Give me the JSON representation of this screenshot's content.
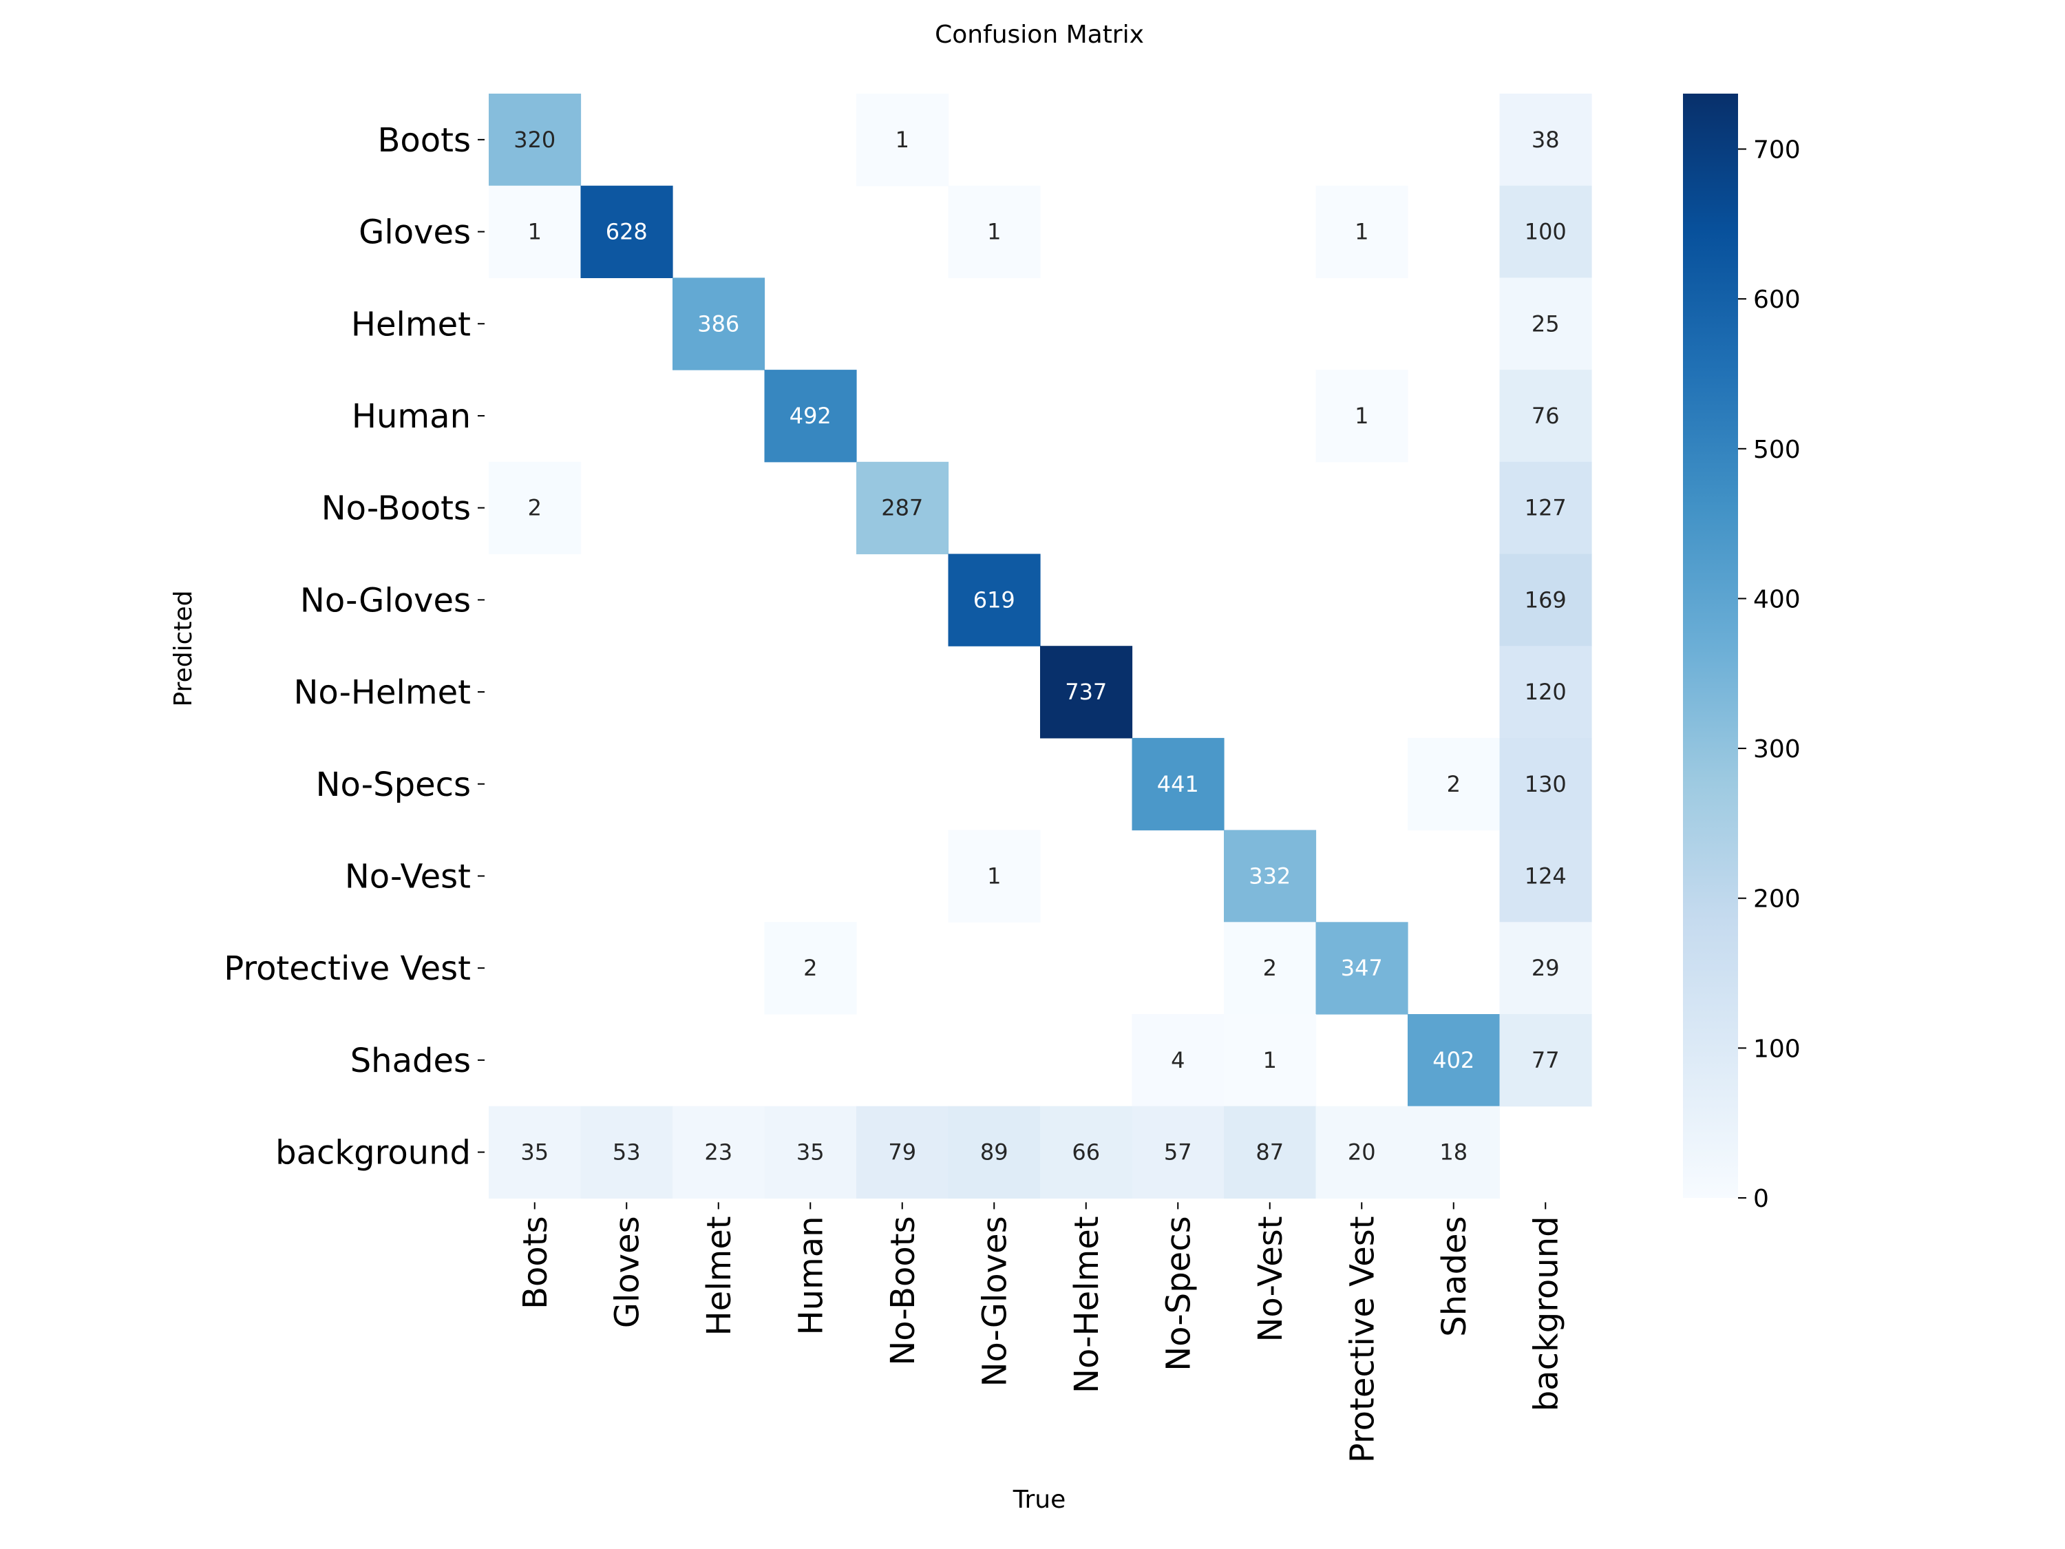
{
  "chart_data": {
    "type": "heatmap",
    "title": "Confusion Matrix",
    "xlabel": "True",
    "ylabel": "Predicted",
    "x_categories": [
      "Boots",
      "Gloves",
      "Helmet",
      "Human",
      "No-Boots",
      "No-Gloves",
      "No-Helmet",
      "No-Specs",
      "No-Vest",
      "Protective Vest",
      "Shades",
      "background"
    ],
    "y_categories": [
      "Boots",
      "Gloves",
      "Helmet",
      "Human",
      "No-Boots",
      "No-Gloves",
      "No-Helmet",
      "No-Specs",
      "No-Vest",
      "Protective Vest",
      "Shades",
      "background"
    ],
    "values": [
      [
        320,
        null,
        null,
        null,
        1,
        null,
        null,
        null,
        null,
        null,
        null,
        38
      ],
      [
        1,
        628,
        null,
        null,
        null,
        1,
        null,
        null,
        null,
        1,
        null,
        100
      ],
      [
        null,
        null,
        386,
        null,
        null,
        null,
        null,
        null,
        null,
        null,
        null,
        25
      ],
      [
        null,
        null,
        null,
        492,
        null,
        null,
        null,
        null,
        null,
        1,
        null,
        76
      ],
      [
        2,
        null,
        null,
        null,
        287,
        null,
        null,
        null,
        null,
        null,
        null,
        127
      ],
      [
        null,
        null,
        null,
        null,
        null,
        619,
        null,
        null,
        null,
        null,
        null,
        169
      ],
      [
        null,
        null,
        null,
        null,
        null,
        null,
        737,
        null,
        null,
        null,
        null,
        120
      ],
      [
        null,
        null,
        null,
        null,
        null,
        null,
        null,
        441,
        null,
        null,
        2,
        130
      ],
      [
        null,
        null,
        null,
        null,
        null,
        1,
        null,
        null,
        332,
        null,
        null,
        124
      ],
      [
        null,
        null,
        null,
        2,
        null,
        null,
        null,
        null,
        2,
        347,
        null,
        29
      ],
      [
        null,
        null,
        null,
        null,
        null,
        null,
        null,
        4,
        1,
        null,
        402,
        77
      ],
      [
        35,
        53,
        23,
        35,
        79,
        89,
        66,
        57,
        87,
        20,
        18,
        null
      ]
    ],
    "colorbar": {
      "min": 0,
      "max": 737,
      "ticks": [
        0,
        100,
        200,
        300,
        400,
        500,
        600,
        700
      ]
    },
    "colormap": "Blues",
    "grid": false
  }
}
